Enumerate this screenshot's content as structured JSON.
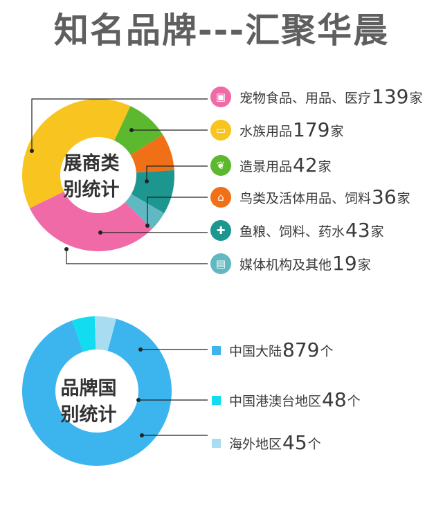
{
  "title": "知名品牌---汇聚华晨",
  "chart_data": [
    {
      "type": "pie",
      "center_label": [
        "展商类",
        "别统计"
      ],
      "unit": "家",
      "categories": [
        "宠物食品、用品、医疗",
        "水族用品",
        "造景用品",
        "鸟类及活体用品、饲料",
        "鱼粮、饲料、药水",
        "媒体机构及其他"
      ],
      "values": [
        139,
        179,
        42,
        36,
        43,
        19
      ],
      "colors": [
        "#f06aa8",
        "#f7c420",
        "#5cb82e",
        "#f07018",
        "#1e9690",
        "#60b8c2"
      ],
      "icons": [
        "pet-bag-icon",
        "aquarium-icon",
        "leaf-icon",
        "house-icon",
        "medicine-jar-icon",
        "media-icon"
      ]
    },
    {
      "type": "pie",
      "center_label": [
        "品牌国",
        "别统计"
      ],
      "unit": "个",
      "categories": [
        "中国大陆",
        "中国港澳台地区",
        "海外地区"
      ],
      "values": [
        879,
        48,
        45
      ],
      "colors": [
        "#3cb4ee",
        "#12dcf0",
        "#a8dcf0"
      ]
    }
  ]
}
